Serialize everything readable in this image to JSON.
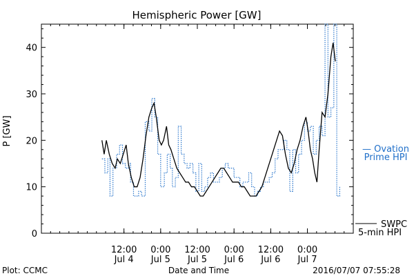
{
  "chart_data": {
    "type": "line",
    "title": "Hemispheric Power [GW]",
    "xlabel": "Date and Time",
    "ylabel": "P [GW]",
    "ylim": [
      0,
      45
    ],
    "xlim": [
      3.375,
      7.625
    ],
    "x_unit": "days (July 2016)",
    "grid": false,
    "x_ticks": [
      {
        "x": 4.5,
        "line1": "12:00",
        "line2": "Jul 4"
      },
      {
        "x": 5.0,
        "line1": "0:00",
        "line2": "Jul 5"
      },
      {
        "x": 5.5,
        "line1": "12:00",
        "line2": "Jul 5"
      },
      {
        "x": 6.0,
        "line1": "0:00",
        "line2": "Jul 6"
      },
      {
        "x": 6.5,
        "line1": "12:00",
        "line2": "Jul 6"
      },
      {
        "x": 7.0,
        "line1": "0:00",
        "line2": "Jul 7"
      }
    ],
    "y_ticks": [
      0,
      10,
      20,
      30,
      40
    ],
    "series": [
      {
        "name": "Ovation Prime HPI",
        "color": "#1f6fc9",
        "style": "dotted-step",
        "points": [
          [
            4.2,
            16
          ],
          [
            4.24,
            13
          ],
          [
            4.28,
            16
          ],
          [
            4.31,
            8
          ],
          [
            4.35,
            14
          ],
          [
            4.4,
            17
          ],
          [
            4.44,
            19
          ],
          [
            4.48,
            15
          ],
          [
            4.52,
            14
          ],
          [
            4.56,
            15
          ],
          [
            4.59,
            11
          ],
          [
            4.63,
            8
          ],
          [
            4.67,
            8
          ],
          [
            4.7,
            9
          ],
          [
            4.74,
            8
          ],
          [
            4.79,
            24
          ],
          [
            4.84,
            22
          ],
          [
            4.88,
            29
          ],
          [
            4.92,
            25
          ],
          [
            4.96,
            17
          ],
          [
            5.0,
            10
          ],
          [
            5.05,
            13
          ],
          [
            5.09,
            17
          ],
          [
            5.13,
            14
          ],
          [
            5.16,
            10
          ],
          [
            5.2,
            12
          ],
          [
            5.24,
            23
          ],
          [
            5.28,
            17
          ],
          [
            5.32,
            15
          ],
          [
            5.36,
            14
          ],
          [
            5.4,
            15
          ],
          [
            5.44,
            13
          ],
          [
            5.48,
            9
          ],
          [
            5.52,
            15
          ],
          [
            5.56,
            9
          ],
          [
            5.6,
            10
          ],
          [
            5.64,
            12
          ],
          [
            5.68,
            13
          ],
          [
            5.72,
            11
          ],
          [
            5.76,
            11
          ],
          [
            5.8,
            12
          ],
          [
            5.84,
            14
          ],
          [
            5.88,
            15
          ],
          [
            5.92,
            14
          ],
          [
            5.96,
            14
          ],
          [
            6.0,
            12
          ],
          [
            6.04,
            12
          ],
          [
            6.08,
            10
          ],
          [
            6.12,
            11
          ],
          [
            6.16,
            11
          ],
          [
            6.2,
            13
          ],
          [
            6.24,
            10
          ],
          [
            6.28,
            8
          ],
          [
            6.32,
            9
          ],
          [
            6.36,
            10
          ],
          [
            6.4,
            11
          ],
          [
            6.44,
            11
          ],
          [
            6.48,
            12
          ],
          [
            6.52,
            13
          ],
          [
            6.56,
            16
          ],
          [
            6.6,
            18
          ],
          [
            6.64,
            18
          ],
          [
            6.68,
            20
          ],
          [
            6.72,
            18
          ],
          [
            6.76,
            9
          ],
          [
            6.8,
            18
          ],
          [
            6.84,
            13
          ],
          [
            6.88,
            17
          ],
          [
            6.92,
            20
          ],
          [
            6.96,
            24
          ],
          [
            7.0,
            22
          ],
          [
            7.04,
            23
          ],
          [
            7.08,
            17
          ],
          [
            7.12,
            20
          ],
          [
            7.16,
            23
          ],
          [
            7.2,
            21
          ],
          [
            7.24,
            45
          ],
          [
            7.28,
            25
          ],
          [
            7.32,
            27
          ],
          [
            7.36,
            45
          ],
          [
            7.4,
            8
          ],
          [
            7.44,
            10
          ]
        ]
      },
      {
        "name": "SWPC 5-min HPI",
        "color": "#000000",
        "style": "solid",
        "points": [
          [
            4.2,
            20
          ],
          [
            4.23,
            17
          ],
          [
            4.26,
            20
          ],
          [
            4.3,
            17
          ],
          [
            4.34,
            15
          ],
          [
            4.38,
            14
          ],
          [
            4.41,
            16
          ],
          [
            4.45,
            15
          ],
          [
            4.49,
            17
          ],
          [
            4.53,
            19
          ],
          [
            4.56,
            15
          ],
          [
            4.6,
            12
          ],
          [
            4.64,
            10
          ],
          [
            4.68,
            10
          ],
          [
            4.72,
            12
          ],
          [
            4.76,
            16
          ],
          [
            4.8,
            21
          ],
          [
            4.84,
            25
          ],
          [
            4.88,
            27
          ],
          [
            4.91,
            28
          ],
          [
            4.94,
            25
          ],
          [
            4.98,
            20
          ],
          [
            5.01,
            19
          ],
          [
            5.04,
            20
          ],
          [
            5.08,
            23
          ],
          [
            5.11,
            19
          ],
          [
            5.14,
            18
          ],
          [
            5.18,
            16
          ],
          [
            5.22,
            14
          ],
          [
            5.26,
            13
          ],
          [
            5.3,
            12
          ],
          [
            5.34,
            11
          ],
          [
            5.38,
            11
          ],
          [
            5.42,
            10
          ],
          [
            5.46,
            10
          ],
          [
            5.5,
            9
          ],
          [
            5.54,
            8
          ],
          [
            5.58,
            8
          ],
          [
            5.62,
            9
          ],
          [
            5.66,
            10
          ],
          [
            5.7,
            11
          ],
          [
            5.74,
            12
          ],
          [
            5.78,
            13
          ],
          [
            5.82,
            14
          ],
          [
            5.86,
            14
          ],
          [
            5.9,
            13
          ],
          [
            5.94,
            12
          ],
          [
            5.98,
            11
          ],
          [
            6.02,
            11
          ],
          [
            6.06,
            11
          ],
          [
            6.1,
            10
          ],
          [
            6.14,
            10
          ],
          [
            6.18,
            9
          ],
          [
            6.22,
            8
          ],
          [
            6.26,
            8
          ],
          [
            6.3,
            8
          ],
          [
            6.34,
            9
          ],
          [
            6.38,
            10
          ],
          [
            6.42,
            12
          ],
          [
            6.46,
            14
          ],
          [
            6.5,
            16
          ],
          [
            6.54,
            18
          ],
          [
            6.58,
            20
          ],
          [
            6.62,
            22
          ],
          [
            6.66,
            21
          ],
          [
            6.7,
            17
          ],
          [
            6.74,
            14
          ],
          [
            6.78,
            13
          ],
          [
            6.82,
            15
          ],
          [
            6.86,
            18
          ],
          [
            6.9,
            20
          ],
          [
            6.94,
            23
          ],
          [
            6.98,
            25
          ],
          [
            7.01,
            22
          ],
          [
            7.04,
            18
          ],
          [
            7.07,
            16
          ],
          [
            7.1,
            13
          ],
          [
            7.13,
            11
          ],
          [
            7.16,
            18
          ],
          [
            7.2,
            26
          ],
          [
            7.24,
            25
          ],
          [
            7.28,
            30
          ],
          [
            7.32,
            38
          ],
          [
            7.35,
            41
          ],
          [
            7.38,
            37
          ]
        ]
      }
    ],
    "legend": [
      {
        "lines": [
          "— Ovation",
          "Prime HPI"
        ],
        "color": "#1f6fc9"
      },
      {
        "lines": [
          "SWPC",
          "5-min HPI"
        ],
        "color": "#000000"
      }
    ]
  },
  "footer": {
    "left": "Plot: CCMC",
    "center": "Date and Time",
    "right": "2016/07/07 07:55:28"
  }
}
